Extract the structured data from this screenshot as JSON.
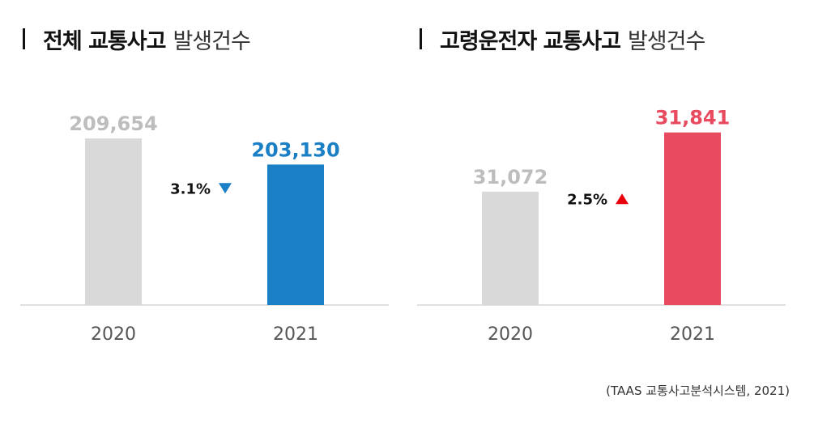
{
  "charts": [
    {
      "title_bold": "전체 교통사고",
      "title_light": "발생건수",
      "chart_data": {
        "type": "bar",
        "categories": [
          "2020",
          "2021"
        ],
        "values": [
          209654,
          203130
        ],
        "value_labels": [
          "209,654",
          "203,130"
        ],
        "bar_colors": [
          "#d9d9d9",
          "#1a7fc4"
        ],
        "label_colors": [
          "#bdbdbd",
          "#1a7fc4"
        ],
        "change_label": "3.1%",
        "change_direction": "down",
        "change_color": "#1a7fc4",
        "ylim": [
          168000,
          220000
        ]
      }
    },
    {
      "title_bold": "고령운전자 교통사고",
      "title_light": "발생건수",
      "chart_data": {
        "type": "bar",
        "categories": [
          "2020",
          "2021"
        ],
        "values": [
          31072,
          31841
        ],
        "value_labels": [
          "31,072",
          "31,841"
        ],
        "bar_colors": [
          "#d9d9d9",
          "#e84a5f"
        ],
        "label_colors": [
          "#bdbdbd",
          "#e84a5f"
        ],
        "change_label": "2.5%",
        "change_direction": "up",
        "change_color": "#e8000d",
        "ylim": [
          29600,
          32300
        ]
      }
    }
  ],
  "source": "(TAAS 교통사고분석시스템, 2021)"
}
